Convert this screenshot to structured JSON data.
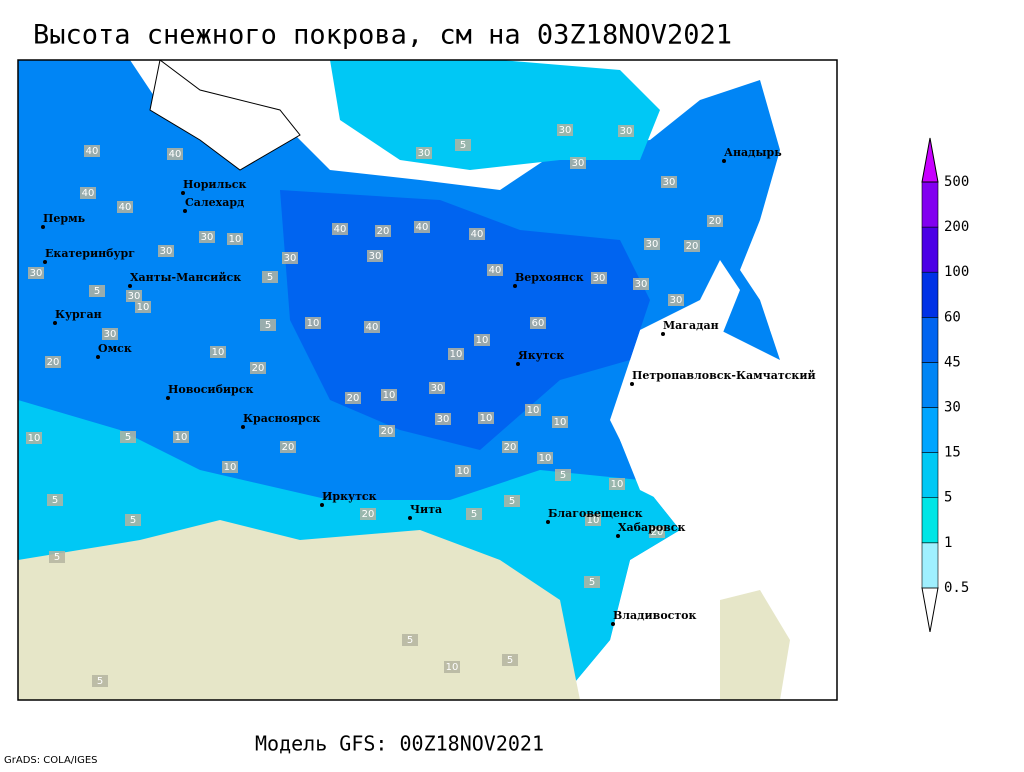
{
  "title": "Высота снежного покрова, см на 03Z18NOV2021",
  "subtitle": "Модель GFS: 00Z18NOV2021",
  "credit": "GrADS: COLA/IGES",
  "colorbar": {
    "levels": [
      0.5,
      1,
      5,
      15,
      30,
      45,
      60,
      100,
      200,
      500
    ],
    "colors": [
      "#ffffff",
      "#a0f0ff",
      "#00e6e6",
      "#00c8f5",
      "#00a5ff",
      "#0085f5",
      "#0064f0",
      "#0032e6",
      "#4b00e6",
      "#8200f0",
      "#c800ff"
    ]
  },
  "cities": [
    "Норильск",
    "Салехард",
    "Пермь",
    "Екатеринбург",
    "Ханты-Мансийск",
    "Курган",
    "Омск",
    "Новосибирск",
    "Красноярск",
    "Иркутск",
    "Чита",
    "Благовещенск",
    "Хабаровск",
    "Владивосток",
    "Якутск",
    "Верхоянск",
    "Магадан",
    "Петропавловск-Камчатский",
    "Анадырь"
  ],
  "contour_labels": [
    10,
    10,
    5,
    5,
    5,
    10,
    10,
    5,
    30,
    30,
    30,
    30,
    40,
    40,
    40,
    40,
    40,
    20,
    30,
    30,
    40,
    40,
    40,
    30,
    30,
    30,
    20,
    30,
    20,
    30,
    30,
    30,
    30,
    40,
    60,
    10,
    10,
    10,
    20,
    20,
    30,
    30,
    30,
    20,
    20,
    30,
    10,
    10,
    10,
    20,
    20,
    10,
    5,
    10,
    10,
    10,
    10,
    5,
    10,
    5,
    10,
    20,
    20,
    5,
    5,
    5,
    5,
    5,
    10,
    5,
    5,
    5
  ]
}
